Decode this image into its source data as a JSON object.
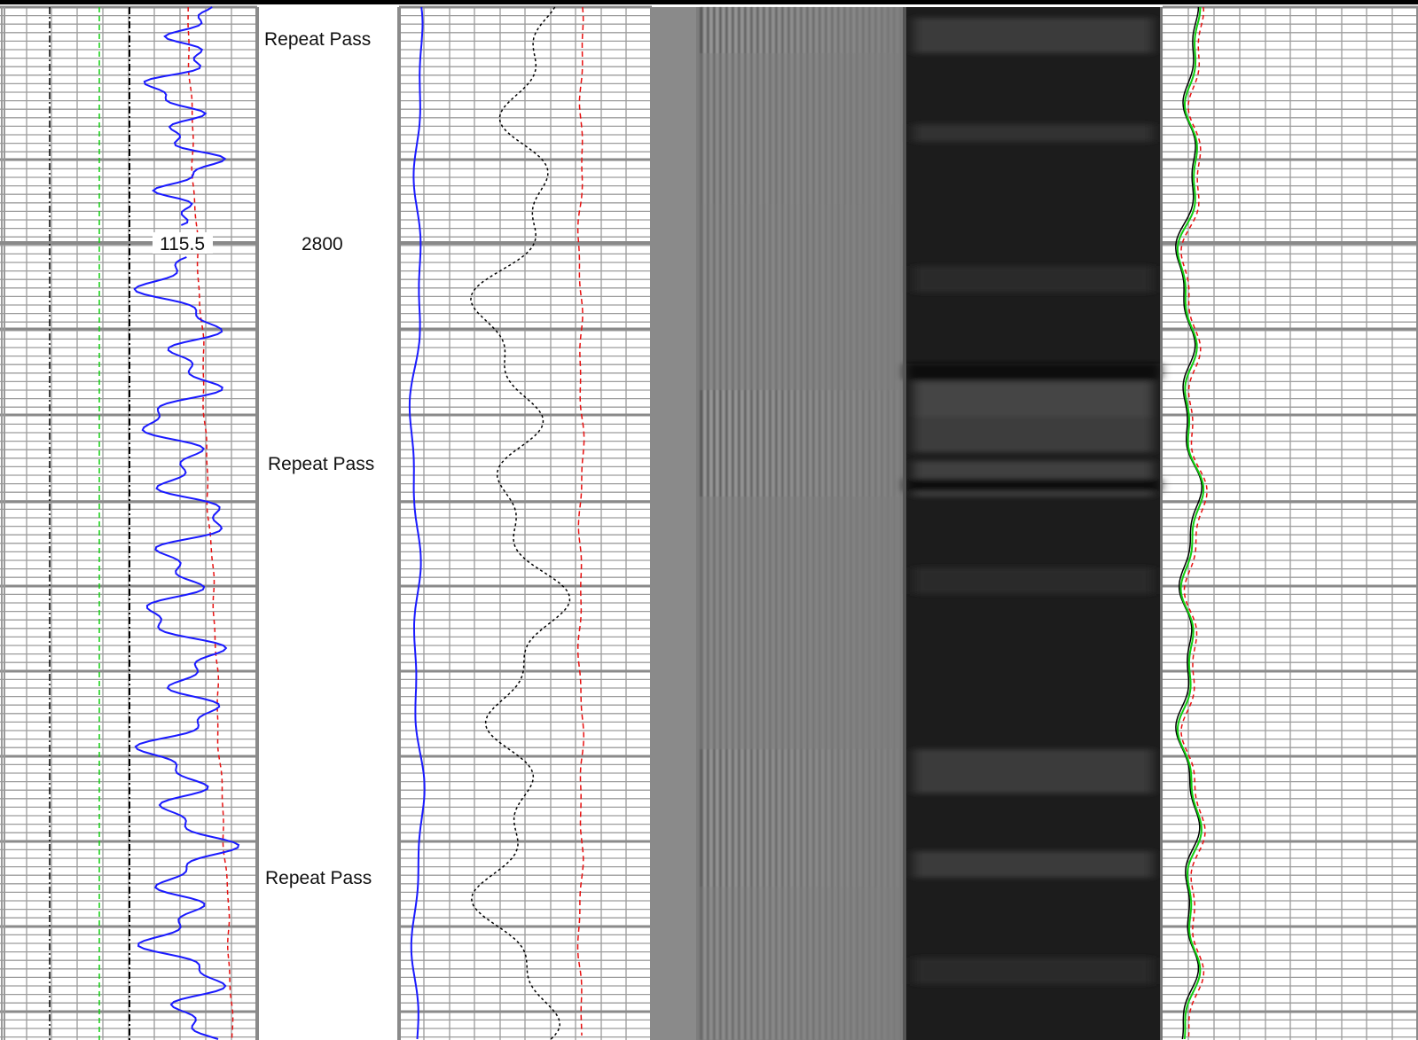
{
  "depth_track": {
    "depth_label": "2800",
    "pass_labels": [
      "Repeat Pass",
      "Repeat Pass",
      "Repeat Pass"
    ]
  },
  "track1": {
    "readout": "115.5"
  },
  "colors": {
    "background": "#ffffff",
    "grid_major": "#8a8a8a",
    "grid_minor": "#9c9c9c",
    "blue_curve": "#1a1aff",
    "red_curve": "#e81010",
    "green_curve": "#10d010",
    "black_curve": "#000000",
    "waveform_background": "#7d7d7d",
    "image_background": "#1c1c1c"
  }
}
